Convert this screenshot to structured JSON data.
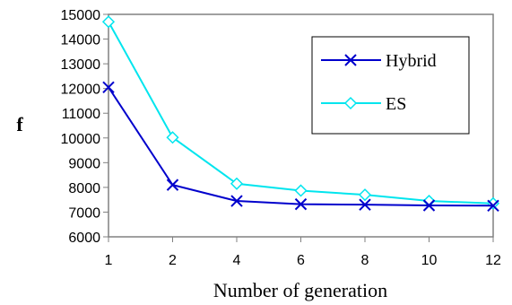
{
  "chart_data": {
    "type": "line",
    "title": "",
    "xlabel": "Number of generation",
    "ylabel": "f",
    "categories": [
      "1",
      "2",
      "4",
      "6",
      "8",
      "10",
      "12"
    ],
    "ylim": [
      6000,
      15000
    ],
    "yticks": [
      "6000",
      "7000",
      "8000",
      "9000",
      "10000",
      "11000",
      "12000",
      "13000",
      "14000",
      "15000"
    ],
    "grid": false,
    "legend": "top-right",
    "series": [
      {
        "name": "Hybrid",
        "color": "#0000cc",
        "marker": "x",
        "values": [
          12050,
          8100,
          7450,
          7320,
          7300,
          7270,
          7260
        ]
      },
      {
        "name": "ES",
        "color": "#00e5ee",
        "marker": "diamond",
        "values": [
          14700,
          10020,
          8150,
          7870,
          7700,
          7450,
          7350
        ]
      }
    ]
  }
}
